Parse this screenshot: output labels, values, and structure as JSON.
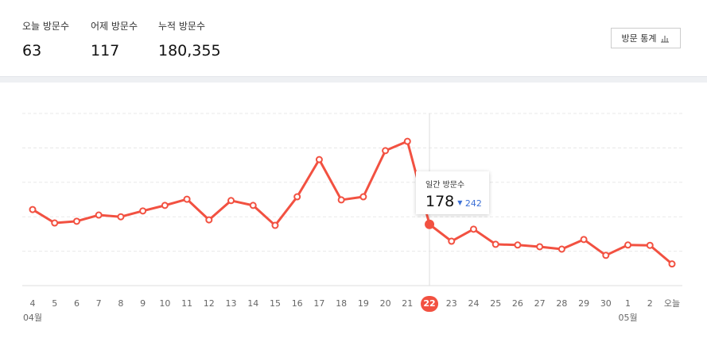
{
  "stats": [
    {
      "label": "오늘 방문수",
      "value": "63"
    },
    {
      "label": "어제 방문수",
      "value": "117"
    },
    {
      "label": "누적 방문수",
      "value": "180,355"
    }
  ],
  "button": "방문 통계",
  "chart_data": {
    "type": "line",
    "categories": [
      "4",
      "5",
      "6",
      "7",
      "8",
      "9",
      "10",
      "11",
      "12",
      "13",
      "14",
      "15",
      "16",
      "17",
      "18",
      "19",
      "20",
      "21",
      "22",
      "23",
      "24",
      "25",
      "26",
      "27",
      "28",
      "29",
      "30",
      "1",
      "2",
      "오늘"
    ],
    "month_labels": [
      "04월",
      null,
      null,
      null,
      null,
      null,
      null,
      null,
      null,
      null,
      null,
      null,
      null,
      null,
      null,
      null,
      null,
      null,
      null,
      null,
      null,
      null,
      null,
      null,
      null,
      null,
      null,
      "05월",
      null,
      null
    ],
    "values": [
      221,
      182,
      187,
      205,
      200,
      217,
      233,
      251,
      191,
      247,
      233,
      175,
      258,
      366,
      249,
      258,
      392,
      419,
      178,
      129,
      164,
      120,
      118,
      113,
      106,
      134,
      88,
      118,
      117,
      63
    ],
    "color": "#f25141",
    "ylim": [
      0,
      500
    ],
    "yticks": [
      0,
      100,
      200,
      300,
      400,
      500
    ],
    "grid": true,
    "selected_index": 18,
    "tooltip": {
      "title": "일간 방문수",
      "delta": "242"
    }
  }
}
